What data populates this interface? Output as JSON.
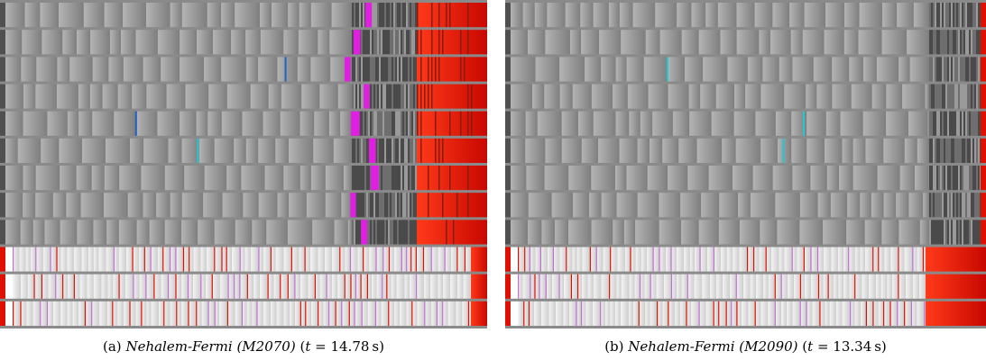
{
  "figure": {
    "panels": [
      {
        "label": "(a)",
        "name": "Nehalem-Fermi (M2070)",
        "time_prefix": "(",
        "time_var": "t",
        "time_eq": " = 14.78",
        "time_unit": "s)"
      },
      {
        "label": "(b)",
        "name": "Nehalem-Fermi (M2090)",
        "time_prefix": "(",
        "time_var": "t",
        "time_eq": " = 13.34",
        "time_unit": "s)"
      }
    ],
    "colors": {
      "background_gray": "#8a8a8a",
      "idle_light": "#e8e8e8",
      "red": "#e01000",
      "magenta": "#e020e0",
      "cyan": "#20c8d0",
      "blue": "#2060c0",
      "dark_gray": "#505050"
    }
  }
}
